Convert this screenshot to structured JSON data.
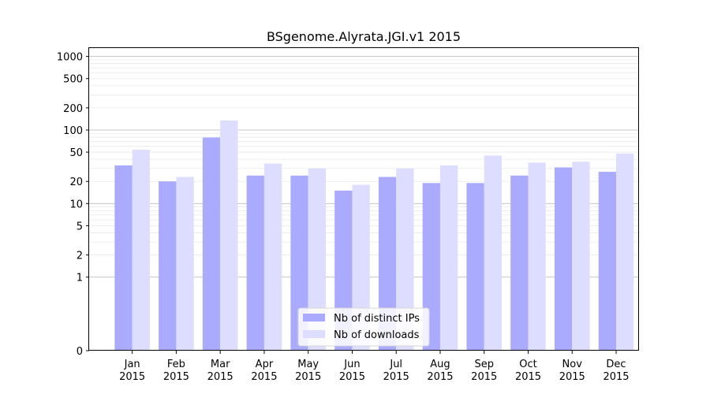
{
  "chart_data": {
    "type": "bar",
    "title": "BSgenome.Alyrata.JGI.v1 2015",
    "xlabel": "",
    "ylabel": "",
    "yscale": "symlog",
    "ylim": [
      0,
      1300
    ],
    "yticks": [
      0,
      1,
      2,
      5,
      10,
      20,
      50,
      100,
      200,
      500,
      1000
    ],
    "categories": [
      "Jan\n2015",
      "Feb\n2015",
      "Mar\n2015",
      "Apr\n2015",
      "May\n2015",
      "Jun\n2015",
      "Jul\n2015",
      "Aug\n2015",
      "Sep\n2015",
      "Oct\n2015",
      "Nov\n2015",
      "Dec\n2015"
    ],
    "category_lines": [
      [
        "Jan",
        "2015"
      ],
      [
        "Feb",
        "2015"
      ],
      [
        "Mar",
        "2015"
      ],
      [
        "Apr",
        "2015"
      ],
      [
        "May",
        "2015"
      ],
      [
        "Jun",
        "2015"
      ],
      [
        "Jul",
        "2015"
      ],
      [
        "Aug",
        "2015"
      ],
      [
        "Sep",
        "2015"
      ],
      [
        "Oct",
        "2015"
      ],
      [
        "Nov",
        "2015"
      ],
      [
        "Dec",
        "2015"
      ]
    ],
    "series": [
      {
        "name": "Nb of distinct IPs",
        "color": "#aaaaff",
        "values": [
          33,
          20,
          79,
          24,
          24,
          15,
          23,
          19,
          19,
          24,
          31,
          27
        ]
      },
      {
        "name": "Nb of downloads",
        "color": "#ddddff",
        "values": [
          54,
          23,
          135,
          35,
          30,
          18,
          30,
          33,
          45,
          36,
          37,
          48
        ]
      }
    ],
    "grid": true,
    "legend_position": "bottom-center"
  }
}
